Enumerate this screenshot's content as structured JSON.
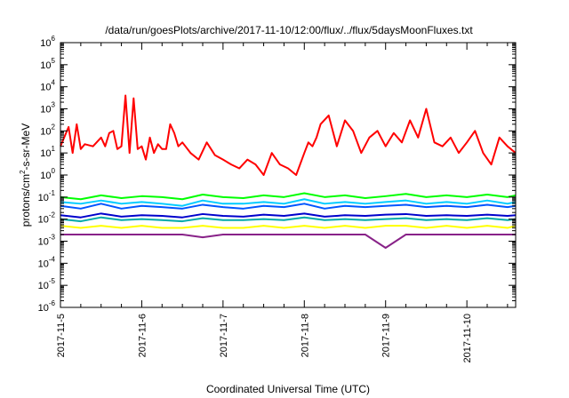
{
  "chart_data": {
    "type": "line",
    "title": "/data/run/goesPlots/archive/2017-11-10/12:00/flux/../flux/5daysMoonFluxes.txt",
    "xlabel": "Coordinated Universal Time (UTC)",
    "ylabel": "protons/cm²-s-sr-MeV",
    "ylabel_parts": {
      "pre": "protons/cm",
      "sup": "2",
      "post": "-s-sr-MeV"
    },
    "x_ticks": [
      "2017-11-5",
      "2017-11-6",
      "2017-11-7",
      "2017-11-8",
      "2017-11-9",
      "2017-11-10"
    ],
    "x_range_days": [
      0,
      5.6
    ],
    "y_scale": "log",
    "ylim": [
      1e-06,
      1000000.0
    ],
    "y_ticks": [
      {
        "base": "10",
        "exp": "6"
      },
      {
        "base": "10",
        "exp": "5"
      },
      {
        "base": "10",
        "exp": "4"
      },
      {
        "base": "10",
        "exp": "3"
      },
      {
        "base": "10",
        "exp": "2"
      },
      {
        "base": "10",
        "exp": "1"
      },
      {
        "base": "10",
        "exp": "0"
      },
      {
        "base": "10",
        "exp": "-1"
      },
      {
        "base": "10",
        "exp": "-2"
      },
      {
        "base": "10",
        "exp": "-3"
      },
      {
        "base": "10",
        "exp": "-4"
      },
      {
        "base": "10",
        "exp": "-5"
      },
      {
        "base": "10",
        "exp": "-6"
      }
    ],
    "grid": false,
    "legend": "none",
    "series": [
      {
        "color": "#ff0000",
        "x": [
          0,
          0.1,
          0.15,
          0.2,
          0.25,
          0.3,
          0.4,
          0.5,
          0.55,
          0.6,
          0.65,
          0.7,
          0.75,
          0.8,
          0.85,
          0.9,
          0.95,
          1.0,
          1.05,
          1.1,
          1.15,
          1.2,
          1.25,
          1.3,
          1.35,
          1.4,
          1.45,
          1.5,
          1.6,
          1.7,
          1.8,
          1.9,
          2.0,
          2.1,
          2.2,
          2.3,
          2.4,
          2.5,
          2.6,
          2.7,
          2.8,
          2.9,
          3.0,
          3.05,
          3.1,
          3.15,
          3.2,
          3.3,
          3.4,
          3.5,
          3.6,
          3.7,
          3.8,
          3.9,
          4.0,
          4.1,
          4.2,
          4.3,
          4.4,
          4.5,
          4.6,
          4.7,
          4.8,
          4.9,
          5.0,
          5.1,
          5.2,
          5.3,
          5.4,
          5.5,
          5.6
        ],
        "y": [
          20,
          150,
          10,
          200,
          15,
          25,
          20,
          50,
          20,
          80,
          100,
          15,
          20,
          4000,
          10,
          3000,
          15,
          20,
          5,
          50,
          10,
          25,
          15,
          15,
          200,
          80,
          20,
          30,
          10,
          5,
          30,
          8,
          5,
          3,
          2,
          5,
          3,
          1,
          10,
          3,
          2,
          1,
          10,
          30,
          20,
          50,
          200,
          500,
          20,
          300,
          100,
          10,
          50,
          100,
          20,
          80,
          30,
          300,
          50,
          1000,
          30,
          20,
          50,
          10,
          30,
          100,
          10,
          3,
          50,
          20,
          10
        ]
      },
      {
        "color": "#00ff00",
        "x": [
          0,
          0.25,
          0.5,
          0.75,
          1.0,
          1.25,
          1.5,
          1.75,
          2.0,
          2.25,
          2.5,
          2.75,
          3.0,
          3.25,
          3.5,
          3.75,
          4.0,
          4.25,
          4.5,
          4.75,
          5.0,
          5.25,
          5.5,
          5.6
        ],
        "y": [
          0.1,
          0.08,
          0.12,
          0.09,
          0.11,
          0.1,
          0.08,
          0.13,
          0.1,
          0.09,
          0.12,
          0.1,
          0.15,
          0.1,
          0.12,
          0.09,
          0.11,
          0.14,
          0.1,
          0.12,
          0.1,
          0.13,
          0.1,
          0.12
        ]
      },
      {
        "color": "#00ccff",
        "x": [
          0,
          0.25,
          0.5,
          0.75,
          1.0,
          1.25,
          1.5,
          1.75,
          2.0,
          2.25,
          2.5,
          2.75,
          3.0,
          3.25,
          3.5,
          3.75,
          4.0,
          4.25,
          4.5,
          4.75,
          5.0,
          5.25,
          5.5,
          5.6
        ],
        "y": [
          0.06,
          0.05,
          0.07,
          0.05,
          0.06,
          0.05,
          0.04,
          0.07,
          0.05,
          0.05,
          0.06,
          0.05,
          0.08,
          0.05,
          0.06,
          0.05,
          0.06,
          0.07,
          0.05,
          0.06,
          0.05,
          0.07,
          0.05,
          0.06
        ]
      },
      {
        "color": "#0055ff",
        "x": [
          0,
          0.25,
          0.5,
          0.75,
          1.0,
          1.25,
          1.5,
          1.75,
          2.0,
          2.25,
          2.5,
          2.75,
          3.0,
          3.25,
          3.5,
          3.75,
          4.0,
          4.25,
          4.5,
          4.75,
          5.0,
          5.25,
          5.5,
          5.6
        ],
        "y": [
          0.04,
          0.03,
          0.05,
          0.03,
          0.04,
          0.035,
          0.03,
          0.045,
          0.035,
          0.03,
          0.04,
          0.035,
          0.05,
          0.03,
          0.04,
          0.035,
          0.04,
          0.045,
          0.035,
          0.04,
          0.035,
          0.045,
          0.035,
          0.04
        ]
      },
      {
        "color": "#0000cc",
        "x": [
          0,
          0.25,
          0.5,
          0.75,
          1.0,
          1.25,
          1.5,
          1.75,
          2.0,
          2.25,
          2.5,
          2.75,
          3.0,
          3.25,
          3.5,
          3.75,
          4.0,
          4.25,
          4.5,
          4.75,
          5.0,
          5.25,
          5.5,
          5.6
        ],
        "y": [
          0.015,
          0.012,
          0.018,
          0.013,
          0.015,
          0.014,
          0.012,
          0.017,
          0.014,
          0.013,
          0.016,
          0.014,
          0.018,
          0.013,
          0.015,
          0.014,
          0.016,
          0.017,
          0.014,
          0.015,
          0.014,
          0.016,
          0.014,
          0.015
        ]
      },
      {
        "color": "#00aaaa",
        "x": [
          0,
          0.25,
          0.5,
          0.75,
          1.0,
          1.25,
          1.5,
          1.75,
          2.0,
          2.25,
          2.5,
          2.75,
          3.0,
          3.25,
          3.5,
          3.75,
          4.0,
          4.25,
          4.5,
          4.75,
          5.0,
          5.25,
          5.5,
          5.6
        ],
        "y": [
          0.01,
          0.008,
          0.012,
          0.009,
          0.01,
          0.009,
          0.008,
          0.011,
          0.009,
          0.009,
          0.01,
          0.009,
          0.012,
          0.009,
          0.01,
          0.009,
          0.01,
          0.011,
          0.009,
          0.01,
          0.009,
          0.011,
          0.009,
          0.01
        ]
      },
      {
        "color": "#ffff00",
        "x": [
          0,
          0.25,
          0.5,
          0.75,
          1.0,
          1.25,
          1.5,
          1.75,
          2.0,
          2.25,
          2.5,
          2.75,
          3.0,
          3.25,
          3.5,
          3.75,
          4.0,
          4.25,
          4.5,
          4.75,
          5.0,
          5.25,
          5.5,
          5.6
        ],
        "y": [
          0.005,
          0.004,
          0.005,
          0.004,
          0.005,
          0.004,
          0.004,
          0.005,
          0.004,
          0.004,
          0.005,
          0.004,
          0.005,
          0.004,
          0.005,
          0.004,
          0.005,
          0.005,
          0.004,
          0.005,
          0.004,
          0.005,
          0.004,
          0.005
        ]
      },
      {
        "color": "#882288",
        "x": [
          0,
          0.25,
          0.5,
          0.75,
          1.0,
          1.25,
          1.5,
          1.75,
          2.0,
          2.25,
          2.5,
          2.75,
          3.0,
          3.25,
          3.5,
          3.75,
          4.0,
          4.25,
          4.5,
          4.75,
          5.0,
          5.25,
          5.5,
          5.6
        ],
        "y": [
          0.002,
          0.002,
          0.002,
          0.002,
          0.002,
          0.002,
          0.002,
          0.0015,
          0.002,
          0.002,
          0.002,
          0.002,
          0.002,
          0.002,
          0.002,
          0.002,
          0.0005,
          0.002,
          0.002,
          0.002,
          0.002,
          0.002,
          0.002,
          0.002
        ]
      }
    ]
  }
}
